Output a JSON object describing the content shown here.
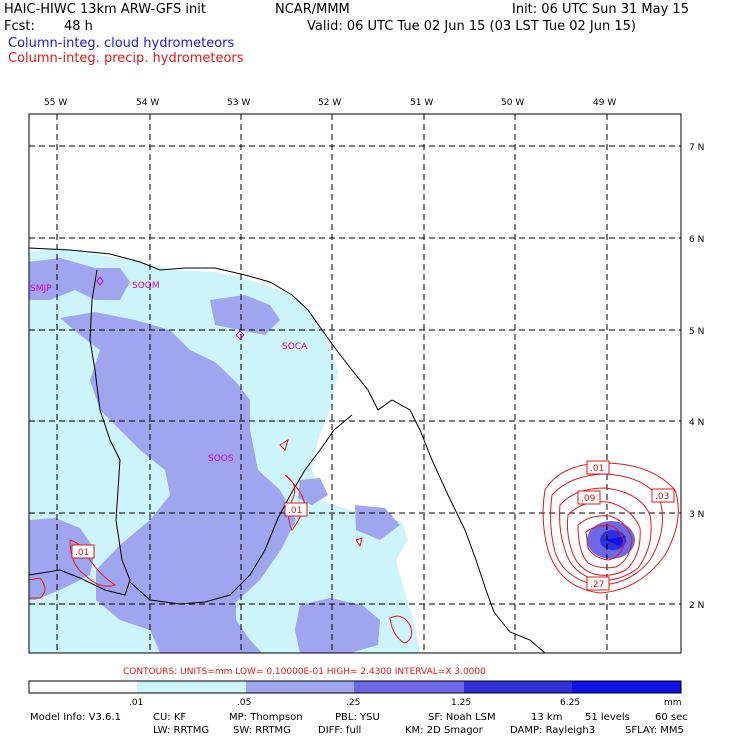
{
  "header": {
    "model": "HAIC-HIWC 13km ARW-GFS init",
    "center": "NCAR/MMM",
    "init": "Init: 06 UTC Sun 31 May 15",
    "fcst_label": "Fcst:",
    "fcst_value": "48 h",
    "valid": "Valid: 06 UTC Tue 02 Jun 15 (03 LST Tue 02 Jun 15)",
    "field1": "Column-integ. cloud hydrometeors",
    "field2": "Column-integ. precip. hydrometeors"
  },
  "colors": {
    "field1": "#1a1adb",
    "field2": "#e0181a",
    "station": "#cc00cc",
    "shade1": "#cdf3fb",
    "shade2": "#9fa6ef",
    "shade3": "#6e68e6",
    "shade4": "#3030d8",
    "shade5": "#1010e8"
  },
  "map": {
    "lon_labels": [
      "55 W",
      "54 W",
      "53 W",
      "52 W",
      "51 W",
      "50 W",
      "49 W"
    ],
    "lat_labels": [
      "7 N",
      "6 N",
      "5 N",
      "4 N",
      "3 N",
      "2 N"
    ],
    "stations": [
      "SMJP",
      "SOOM",
      "SOCA",
      "SOOS"
    ],
    "contour_labels": [
      ".01",
      ".01",
      ".01",
      ".03",
      ".09",
      ".27"
    ]
  },
  "contours_line": "CONTOURS:  UNITS=mm  LOW= 0.10000E-01  HIGH=  2.4300     INTERVAL=X  3.0000",
  "colorbar": {
    "ticks": [
      ".01",
      ".05",
      ".25",
      "1.25",
      "6.25"
    ],
    "units": "mm"
  },
  "footer": {
    "row1": [
      "Model Info: V3.6.1",
      "CU: KF",
      "MP: Thompson",
      "PBL: YSU",
      "SF: Noah LSM",
      "13 km",
      "51 levels",
      "60 sec"
    ],
    "row2": [
      "LW: RRTMG",
      "SW: RRTMG",
      "DIFF: full",
      "KM: 2D Smagor",
      "DAMP: Rayleigh3",
      "SFLAY: MM5"
    ]
  }
}
